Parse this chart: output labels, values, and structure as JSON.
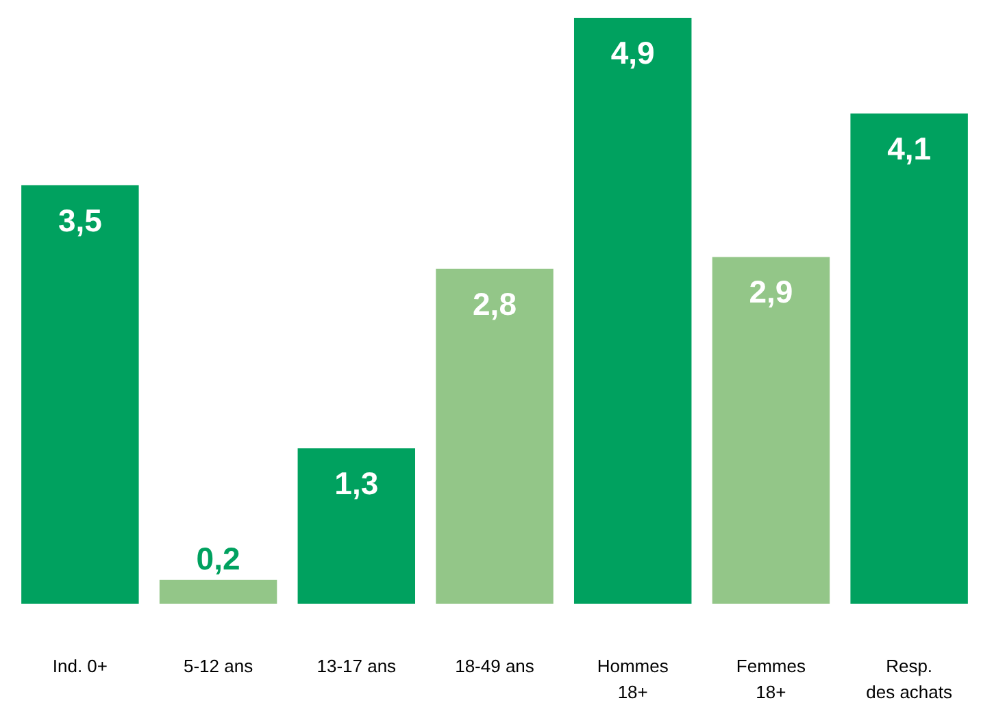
{
  "chart_data": {
    "type": "bar",
    "categories": [
      "Ind. 0+",
      "5-12 ans",
      "13-17 ans",
      "18-49 ans",
      "Hommes\n18+",
      "Femmes\n18+",
      "Resp.\ndes achats"
    ],
    "values": [
      3.5,
      0.2,
      1.3,
      2.8,
      4.9,
      2.9,
      4.1
    ],
    "colors": [
      "#00a15f",
      "#93c688",
      "#00a15f",
      "#93c688",
      "#00a15f",
      "#93c688",
      "#00a15f"
    ],
    "value_labels": [
      "3,5",
      "0,2",
      "1,3",
      "2,8",
      "4,9",
      "2,9",
      "4,1"
    ]
  }
}
